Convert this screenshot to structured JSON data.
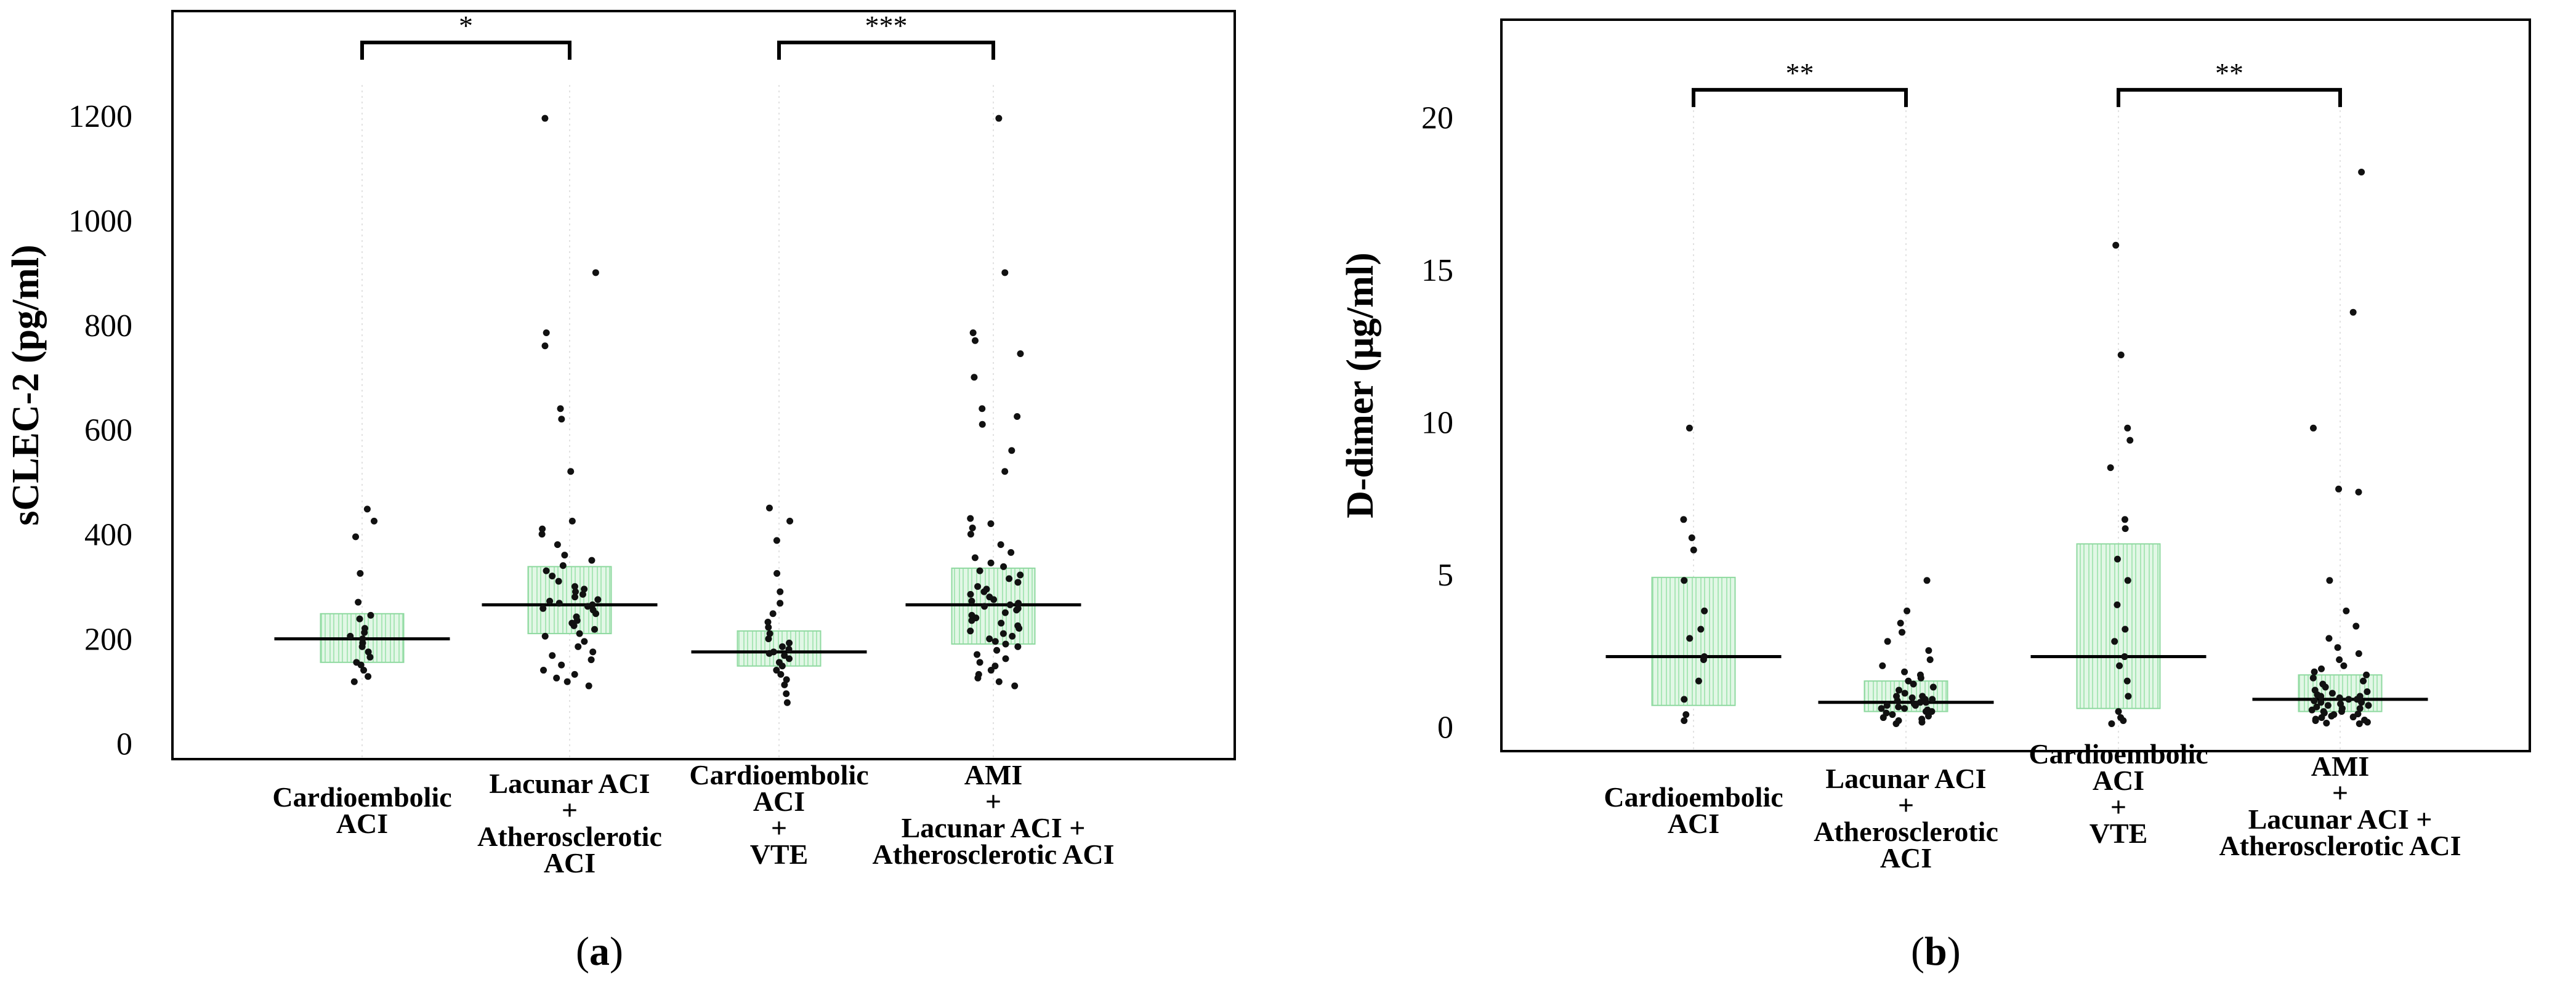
{
  "colors": {
    "box_fill": "#e2f7e6",
    "box_stroke": "#8fd9a0",
    "box_hatch": "#a9e6b6",
    "point": "#111111",
    "axis": "#000000",
    "grid": "#d9d9d9"
  },
  "panels": [
    {
      "label_open": "(",
      "label_letter": "a",
      "label_close": ")"
    },
    {
      "label_open": "(",
      "label_letter": "b",
      "label_close": ")"
    }
  ],
  "chart_data": [
    {
      "type": "scatter",
      "subtype": "dot-plot with median and interquartile box",
      "ylabel": "sCLEC-2 (pg/ml)",
      "ylim": [
        -30,
        1400
      ],
      "yticks": [
        0,
        200,
        400,
        600,
        800,
        1000,
        1200
      ],
      "categories": [
        {
          "lines": [
            "Cardioembolic",
            "ACI"
          ]
        },
        {
          "lines": [
            "Lacunar ACI",
            "+",
            "Atherosclerotic",
            "ACI"
          ]
        },
        {
          "lines": [
            "Cardioembolic",
            "ACI",
            "+",
            "VTE"
          ]
        },
        {
          "lines": [
            "AMI",
            "+",
            "Lacunar ACI +",
            "Atherosclerotic ACI"
          ]
        }
      ],
      "groups": [
        {
          "q1": 155,
          "median": 200,
          "q3": 248,
          "points": [
            118,
            128,
            140,
            150,
            155,
            165,
            175,
            185,
            192,
            200,
            205,
            212,
            220,
            238,
            245,
            270,
            325,
            395,
            425,
            448
          ]
        },
        {
          "q1": 210,
          "median": 265,
          "q3": 338,
          "points": [
            110,
            118,
            125,
            132,
            140,
            150,
            160,
            168,
            175,
            185,
            195,
            205,
            210,
            218,
            225,
            230,
            235,
            242,
            248,
            255,
            258,
            262,
            265,
            268,
            272,
            275,
            280,
            285,
            290,
            295,
            300,
            310,
            320,
            330,
            340,
            350,
            360,
            380,
            400,
            410,
            425,
            520,
            620,
            640,
            760,
            785,
            900,
            1195
          ]
        },
        {
          "q1": 148,
          "median": 175,
          "q3": 215,
          "points": [
            78,
            95,
            112,
            122,
            132,
            140,
            148,
            155,
            162,
            168,
            172,
            175,
            180,
            185,
            192,
            200,
            210,
            222,
            232,
            248,
            268,
            290,
            325,
            388,
            425,
            450
          ]
        },
        {
          "q1": 190,
          "median": 265,
          "q3": 335,
          "points": [
            110,
            118,
            125,
            132,
            140,
            148,
            155,
            162,
            170,
            178,
            185,
            190,
            195,
            200,
            205,
            210,
            215,
            220,
            225,
            230,
            235,
            240,
            245,
            250,
            255,
            258,
            262,
            265,
            268,
            272,
            275,
            280,
            285,
            290,
            295,
            300,
            308,
            315,
            322,
            330,
            338,
            345,
            355,
            365,
            380,
            400,
            412,
            420,
            430,
            520,
            560,
            610,
            625,
            640,
            700,
            745,
            770,
            785,
            900,
            1195
          ]
        }
      ],
      "brackets": [
        {
          "from": 0,
          "to": 1,
          "label": "*",
          "y": 1340
        },
        {
          "from": 2,
          "to": 3,
          "label": "***",
          "y": 1340
        }
      ]
    },
    {
      "type": "scatter",
      "subtype": "dot-plot with median and interquartile box",
      "ylabel": "D-dimer (μg/ml)",
      "ylim": [
        -0.8,
        23.2
      ],
      "yticks": [
        0,
        5,
        10,
        15,
        20
      ],
      "categories": [
        {
          "lines": [
            "Cardioembolic",
            "ACI"
          ]
        },
        {
          "lines": [
            "Lacunar ACI",
            "+",
            "Atherosclerotic",
            "ACI"
          ]
        },
        {
          "lines": [
            "Cardioembolic",
            "ACI",
            "+",
            "VTE"
          ]
        },
        {
          "lines": [
            "AMI",
            "+",
            "Lacunar ACI +",
            "Atherosclerotic ACI"
          ]
        }
      ],
      "groups": [
        {
          "q1": 0.7,
          "median": 2.3,
          "q3": 4.9,
          "points": [
            0.2,
            0.4,
            0.9,
            1.5,
            2.2,
            2.3,
            2.9,
            3.2,
            3.8,
            4.8,
            5.8,
            6.2,
            6.8,
            9.8
          ]
        },
        {
          "q1": 0.5,
          "median": 0.8,
          "q3": 1.5,
          "points": [
            0.1,
            0.15,
            0.2,
            0.25,
            0.3,
            0.35,
            0.4,
            0.45,
            0.5,
            0.5,
            0.55,
            0.6,
            0.6,
            0.65,
            0.7,
            0.7,
            0.75,
            0.8,
            0.8,
            0.85,
            0.9,
            0.9,
            0.95,
            1.0,
            1.0,
            1.1,
            1.2,
            1.3,
            1.4,
            1.5,
            1.6,
            1.7,
            1.8,
            2.0,
            2.2,
            2.5,
            2.8,
            3.1,
            3.4,
            3.8,
            4.8
          ]
        },
        {
          "q1": 0.6,
          "median": 2.3,
          "q3": 6.0,
          "points": [
            0.1,
            0.2,
            0.3,
            0.5,
            1.0,
            1.5,
            2.0,
            2.3,
            2.8,
            3.2,
            4.0,
            4.8,
            5.5,
            6.5,
            6.8,
            8.5,
            9.4,
            9.8,
            12.2,
            15.8
          ]
        },
        {
          "q1": 0.5,
          "median": 0.9,
          "q3": 1.7,
          "points": [
            0.1,
            0.12,
            0.15,
            0.2,
            0.22,
            0.25,
            0.3,
            0.32,
            0.35,
            0.4,
            0.42,
            0.45,
            0.5,
            0.5,
            0.55,
            0.6,
            0.6,
            0.65,
            0.7,
            0.7,
            0.75,
            0.8,
            0.8,
            0.85,
            0.9,
            0.9,
            0.95,
            1.0,
            1.0,
            1.05,
            1.1,
            1.15,
            1.2,
            1.3,
            1.4,
            1.5,
            1.6,
            1.7,
            1.8,
            1.9,
            2.0,
            2.2,
            2.4,
            2.6,
            2.9,
            3.3,
            3.8,
            4.8,
            7.7,
            7.8,
            9.8,
            13.6,
            18.2
          ]
        }
      ],
      "brackets": [
        {
          "from": 0,
          "to": 1,
          "label": "**",
          "y": 20.9
        },
        {
          "from": 2,
          "to": 3,
          "label": "**",
          "y": 20.9
        }
      ]
    }
  ]
}
